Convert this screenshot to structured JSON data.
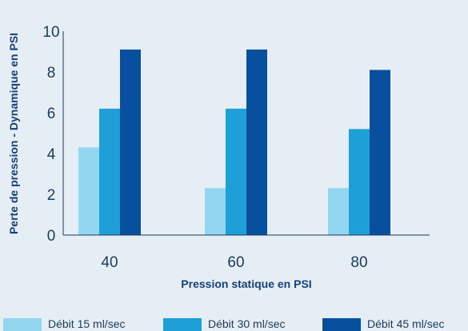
{
  "chart_data": {
    "type": "bar",
    "title": "",
    "xlabel": "Pression statique en PSI",
    "ylabel": "Perte de pression - Dynamique en PSI",
    "categories": [
      "40",
      "60",
      "80"
    ],
    "series": [
      {
        "name": "Débit 15 ml/sec",
        "values": [
          4.3,
          2.3,
          2.3
        ],
        "color": "#93d6ef"
      },
      {
        "name": "Débit 30 ml/sec",
        "values": [
          6.2,
          6.2,
          5.2
        ],
        "color": "#1f9fd8"
      },
      {
        "name": "Débit 45 ml/sec",
        "values": [
          9.1,
          9.1,
          8.1
        ],
        "color": "#084f9d"
      }
    ],
    "ylim": [
      0,
      10
    ],
    "yticks": [
      "0",
      "2",
      "4",
      "6",
      "8",
      "10"
    ],
    "grid": false,
    "legend_position": "bottom"
  },
  "colors": {
    "background": "#e6eef5",
    "axis": "#1b3a5c",
    "title": "#16407a"
  }
}
